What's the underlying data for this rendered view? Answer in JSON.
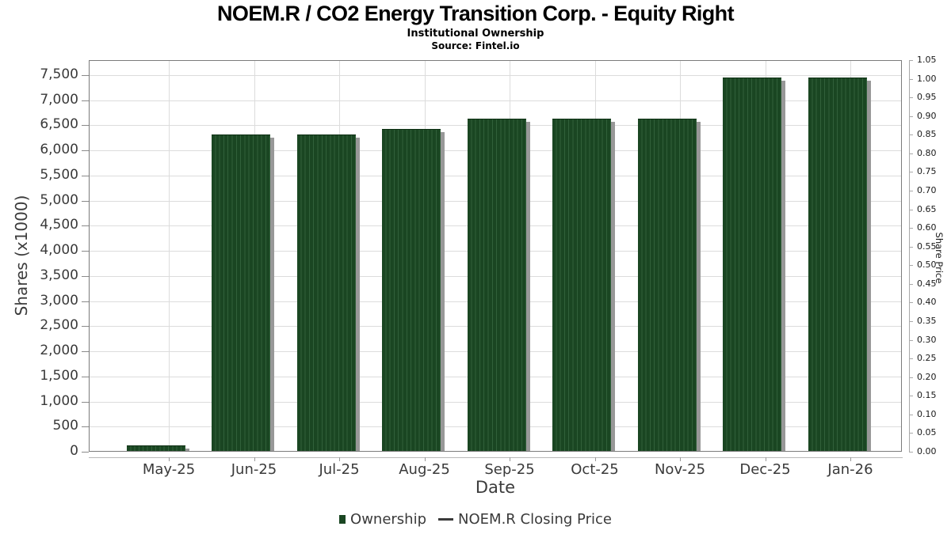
{
  "header": {
    "title": "NOEM.R / CO2 Energy Transition Corp. - Equity Right",
    "subtitle": "Institutional Ownership",
    "source": "Source: Fintel.io"
  },
  "chart_data": {
    "type": "bar",
    "title": "NOEM.R / CO2 Energy Transition Corp. - Equity Right",
    "subtitle": "Institutional Ownership",
    "source": "Source: Fintel.io",
    "xlabel": "Date",
    "ylabel_left": "Shares (x1000)",
    "ylabel_right": "Share Price",
    "categories": [
      "May-25",
      "Jun-25",
      "Jul-25",
      "Aug-25",
      "Sep-25",
      "Oct-25",
      "Nov-25",
      "Dec-25",
      "Jan-26"
    ],
    "series": [
      {
        "name": "Ownership",
        "type": "bar",
        "axis": "left",
        "values": [
          95,
          6280,
          6280,
          6390,
          6600,
          6600,
          6600,
          7425,
          7425
        ]
      },
      {
        "name": "NOEM.R Closing Price",
        "type": "line",
        "axis": "right",
        "values": []
      }
    ],
    "left_axis": {
      "ticks": [
        0,
        500,
        1000,
        1500,
        2000,
        2500,
        3000,
        3500,
        4000,
        4500,
        5000,
        5500,
        6000,
        6500,
        7000,
        7500
      ],
      "range": [
        0,
        7800
      ]
    },
    "right_axis": {
      "ticks": [
        0,
        0.05,
        0.1,
        0.15,
        0.2,
        0.25,
        0.3,
        0.35,
        0.4,
        0.45,
        0.5,
        0.55,
        0.6,
        0.65,
        0.7,
        0.75,
        0.8,
        0.85,
        0.9,
        0.95,
        1.0,
        1.05
      ],
      "range": [
        0,
        1.05
      ]
    },
    "grid": true,
    "legend_position": "bottom",
    "colors": {
      "bar": "#1a4622",
      "bar_hatch": "#31603a",
      "bar_edge": "#0d2f13",
      "bar_shadow": "#989898",
      "grid": "#dcdcdc",
      "frame": "#7b7b7b",
      "axis_text": "#3a3a3a",
      "legend_line": "#3a3a3a"
    }
  },
  "legend": {
    "items": [
      {
        "label": "Ownership",
        "marker": "square",
        "color": "#1a4622"
      },
      {
        "label": "NOEM.R Closing Price",
        "marker": "line",
        "color": "#3a3a3a"
      }
    ]
  }
}
